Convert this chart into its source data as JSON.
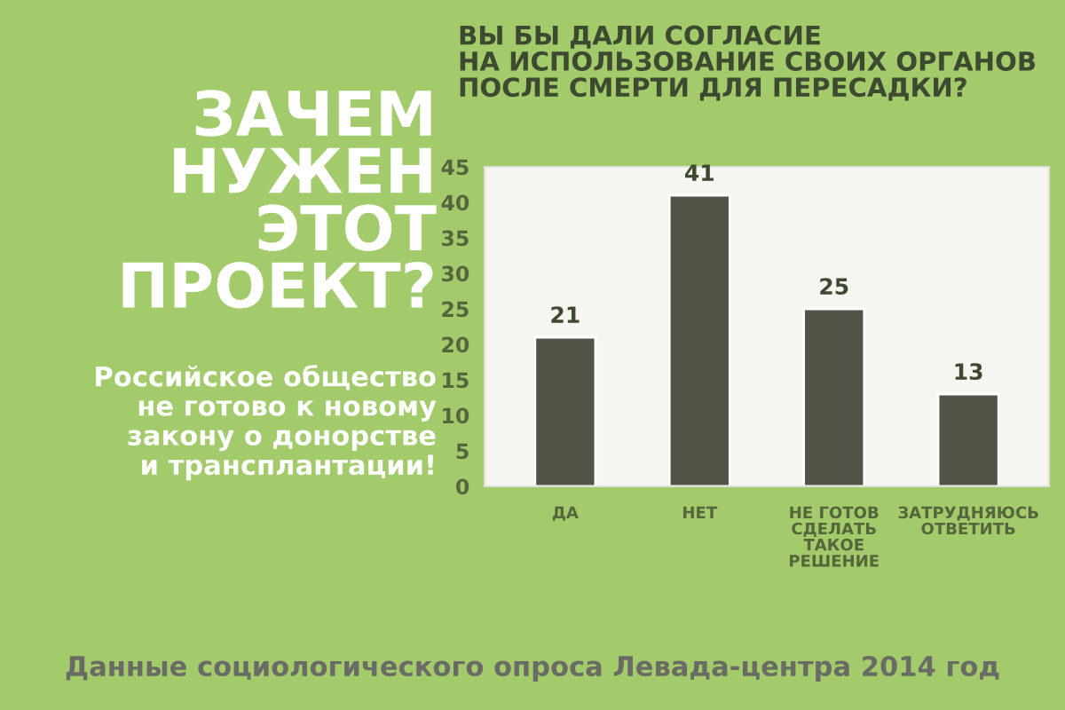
{
  "chart_data": {
    "type": "bar",
    "title": "ВЫ БЫ ДАЛИ СОГЛАСИЕ\nНА ИСПОЛЬЗОВАНИЕ СВОИХ ОРГАНОВ\nПОСЛЕ СМЕРТИ ДЛЯ ПЕРЕСАДКИ?",
    "categories": [
      "ДА",
      "НЕТ",
      "НЕ ГОТОВ\nСДЕЛАТЬ\nТАКОЕ\nРЕШЕНИЕ",
      "ЗАТРУДНЯЮСЬ\nОТВЕТИТЬ"
    ],
    "values": [
      21,
      41,
      25,
      13
    ],
    "color": "#4f5447",
    "ylim": [
      0,
      45
    ],
    "yticks": [
      0,
      5,
      10,
      15,
      20,
      25,
      30,
      35,
      40,
      45
    ],
    "data_labels": true,
    "annotations": [
      "ЗАЧЕМ\nНУЖЕН\nЭТОТ\nПРОЕКТ?",
      "Российское общество\nне готово к новому\nзакону о донорстве\nи трансплантации!",
      "Данные социологического опроса Левада-центра 2014 год"
    ]
  }
}
